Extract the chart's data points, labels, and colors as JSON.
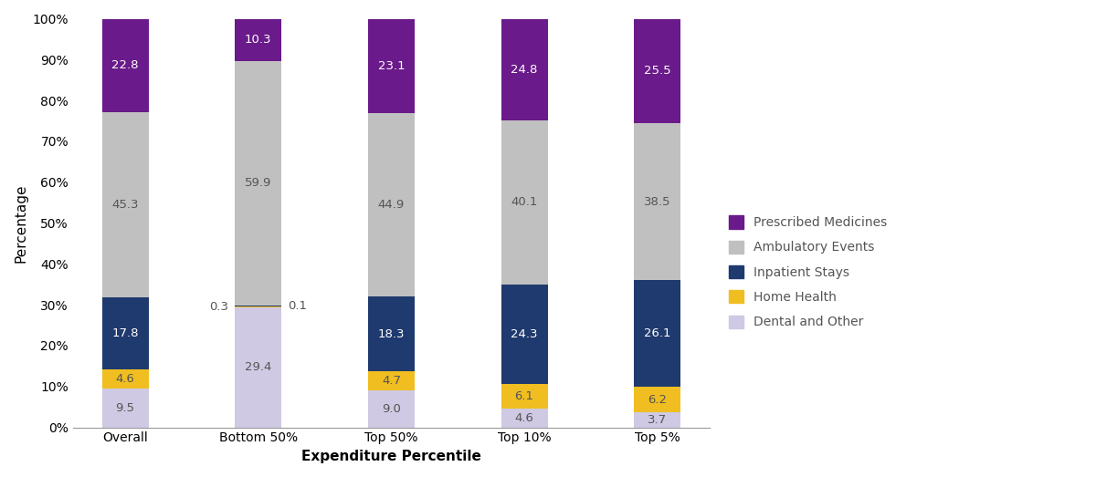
{
  "categories": [
    "Overall",
    "Bottom 50%",
    "Top 50%",
    "Top 10%",
    "Top 5%"
  ],
  "series": {
    "Dental and Other": [
      9.5,
      29.4,
      9.0,
      4.6,
      3.7
    ],
    "Home Health": [
      4.6,
      0.3,
      4.7,
      6.1,
      6.2
    ],
    "Inpatient Stays": [
      17.8,
      0.1,
      18.3,
      24.3,
      26.1
    ],
    "Ambulatory Events": [
      45.3,
      59.9,
      44.9,
      40.1,
      38.5
    ],
    "Prescribed Medicines": [
      22.8,
      10.3,
      23.1,
      24.8,
      25.5
    ]
  },
  "colors": {
    "Dental and Other": "#cfc9e3",
    "Home Health": "#f0be20",
    "Inpatient Stays": "#1f3a6e",
    "Ambulatory Events": "#c0c0c0",
    "Prescribed Medicines": "#6a1a8a"
  },
  "xlabel": "Expenditure Percentile",
  "ylabel": "Percentage",
  "ylim": [
    0,
    100
  ],
  "yticks": [
    0,
    10,
    20,
    30,
    40,
    50,
    60,
    70,
    80,
    90,
    100
  ],
  "ytick_labels": [
    "0%",
    "10%",
    "20%",
    "30%",
    "40%",
    "50%",
    "60%",
    "70%",
    "80%",
    "90%",
    "100%"
  ],
  "bar_width": 0.35,
  "label_fontsize": 9.5,
  "axis_label_fontsize": 11,
  "legend_fontsize": 10,
  "tick_fontsize": 10,
  "small_threshold": 2.0
}
